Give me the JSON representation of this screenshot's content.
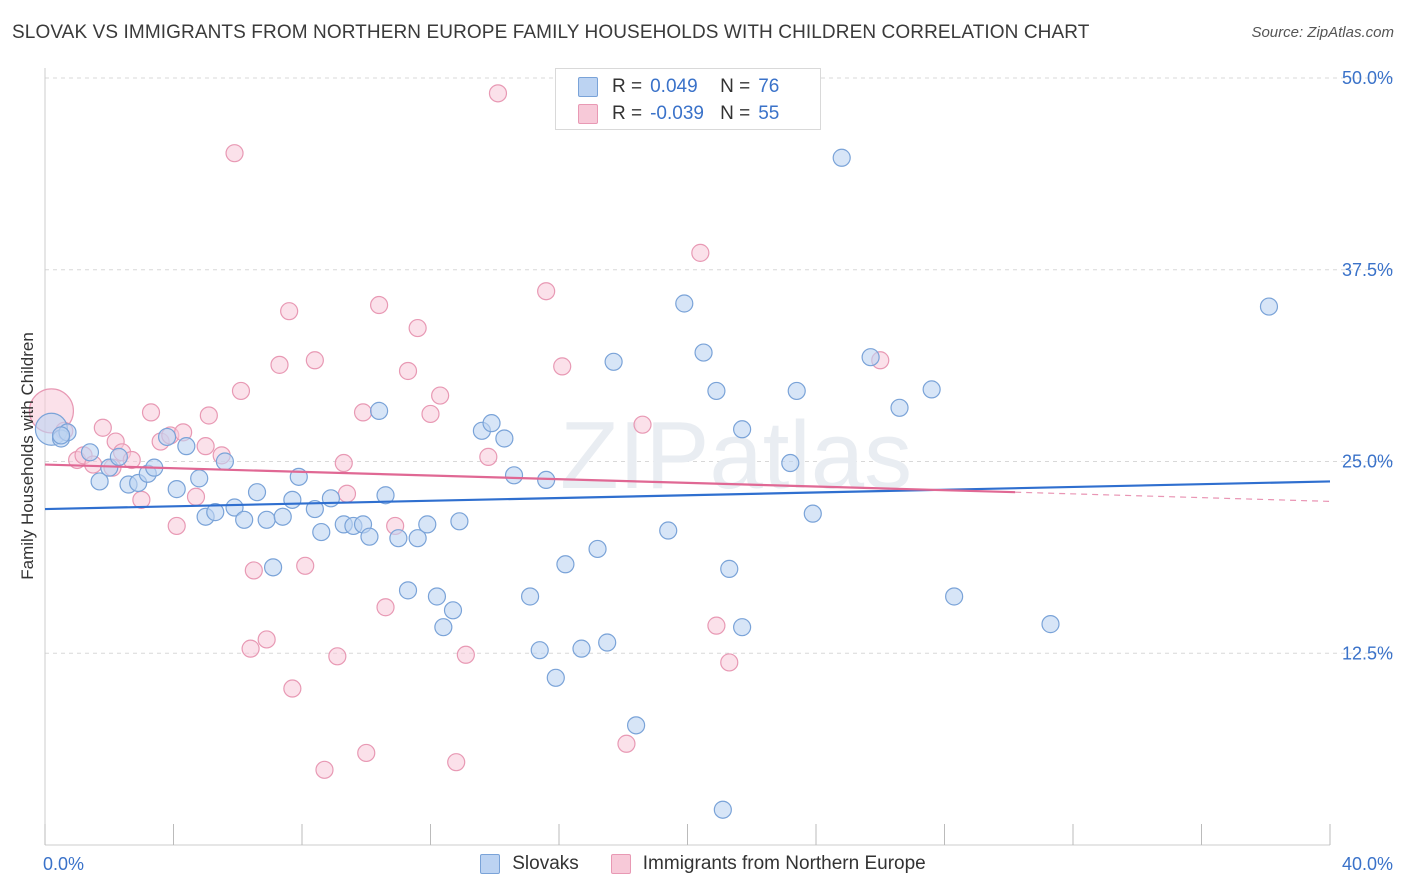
{
  "title": "SLOVAK VS IMMIGRANTS FROM NORTHERN EUROPE FAMILY HOUSEHOLDS WITH CHILDREN CORRELATION CHART",
  "source": "Source: ZipAtlas.com",
  "watermark": "ZIPatlas",
  "legend": {
    "rows": [
      {
        "r_label": "R =",
        "r_value": "0.049",
        "n_label": "N =",
        "n_value": "76"
      },
      {
        "r_label": "R =",
        "r_value": "-0.039",
        "n_label": "N =",
        "n_value": "55"
      }
    ]
  },
  "chart_data": {
    "type": "scatter",
    "title": "SLOVAK VS IMMIGRANTS FROM NORTHERN EUROPE FAMILY HOUSEHOLDS WITH CHILDREN CORRELATION CHART",
    "xlabel": "",
    "ylabel": "Family Households with Children",
    "xlim": [
      0,
      40
    ],
    "ylim": [
      0,
      50
    ],
    "x_tick_labels": [
      "0.0%",
      "40.0%"
    ],
    "y_ticks": [
      12.5,
      25.0,
      37.5,
      50.0
    ],
    "y_tick_labels": [
      "12.5%",
      "25.0%",
      "37.5%",
      "50.0%"
    ],
    "grid": true,
    "legend_position": "top-center",
    "colors": {
      "slovaks_fill": "#bcd3f2",
      "slovaks_stroke": "#7aa3d8",
      "slovaks_line": "#2f6fcf",
      "immig_fill": "#f7c9d8",
      "immig_stroke": "#e899b4",
      "immig_line": "#e06894",
      "tick_label": "#3a72c9",
      "grid": "#d8d8d8"
    },
    "series": [
      {
        "name": "Slovaks",
        "trend": {
          "x0": 0,
          "y0": 21.9,
          "x1": 40,
          "y1": 23.7
        },
        "points": [
          [
            0.2,
            27.1
          ],
          [
            0.5,
            26.5
          ],
          [
            0.7,
            26.9
          ],
          [
            1.4,
            25.6
          ],
          [
            1.7,
            23.7
          ],
          [
            2.0,
            24.6
          ],
          [
            2.3,
            25.3
          ],
          [
            2.6,
            23.5
          ],
          [
            2.9,
            23.6
          ],
          [
            3.2,
            24.2
          ],
          [
            3.4,
            24.6
          ],
          [
            3.8,
            26.6
          ],
          [
            4.1,
            23.2
          ],
          [
            4.4,
            26.0
          ],
          [
            4.8,
            23.9
          ],
          [
            5.0,
            21.4
          ],
          [
            5.3,
            21.7
          ],
          [
            5.6,
            25.0
          ],
          [
            5.9,
            22.0
          ],
          [
            6.2,
            21.2
          ],
          [
            6.6,
            23.0
          ],
          [
            6.9,
            21.2
          ],
          [
            7.1,
            18.1
          ],
          [
            7.4,
            21.4
          ],
          [
            7.7,
            22.5
          ],
          [
            7.9,
            24.0
          ],
          [
            8.4,
            21.9
          ],
          [
            8.6,
            20.4
          ],
          [
            8.9,
            22.6
          ],
          [
            9.3,
            20.9
          ],
          [
            9.6,
            20.8
          ],
          [
            9.9,
            20.9
          ],
          [
            10.1,
            20.1
          ],
          [
            10.4,
            28.3
          ],
          [
            10.6,
            22.8
          ],
          [
            11.0,
            20.0
          ],
          [
            11.3,
            16.6
          ],
          [
            11.6,
            20.0
          ],
          [
            11.9,
            20.9
          ],
          [
            12.2,
            16.2
          ],
          [
            12.4,
            14.2
          ],
          [
            12.7,
            15.3
          ],
          [
            12.9,
            21.1
          ],
          [
            13.6,
            27.0
          ],
          [
            13.9,
            27.5
          ],
          [
            14.3,
            26.5
          ],
          [
            14.6,
            24.1
          ],
          [
            15.1,
            16.2
          ],
          [
            15.4,
            12.7
          ],
          [
            15.6,
            23.8
          ],
          [
            15.9,
            10.9
          ],
          [
            16.2,
            18.3
          ],
          [
            16.7,
            12.8
          ],
          [
            17.2,
            19.3
          ],
          [
            17.5,
            13.2
          ],
          [
            17.7,
            31.5
          ],
          [
            18.4,
            7.8
          ],
          [
            19.4,
            20.5
          ],
          [
            19.9,
            35.3
          ],
          [
            20.5,
            32.1
          ],
          [
            20.9,
            29.6
          ],
          [
            21.1,
            2.3
          ],
          [
            21.3,
            18.0
          ],
          [
            21.7,
            27.1
          ],
          [
            21.7,
            14.2
          ],
          [
            23.2,
            24.9
          ],
          [
            23.4,
            29.6
          ],
          [
            23.9,
            21.6
          ],
          [
            24.8,
            44.8
          ],
          [
            25.7,
            31.8
          ],
          [
            26.6,
            28.5
          ],
          [
            27.6,
            29.7
          ],
          [
            28.3,
            16.2
          ],
          [
            31.3,
            14.4
          ],
          [
            38.1,
            35.1
          ],
          [
            0.5,
            26.7
          ]
        ]
      },
      {
        "name": "Immigrants from Northern Europe",
        "trend": {
          "x0": 0,
          "y0": 24.8,
          "x1": 30.2,
          "y1": 23.0,
          "dash_x1": 40,
          "dash_y1": 22.4
        },
        "points": [
          [
            0.2,
            28.3
          ],
          [
            0.6,
            27.0
          ],
          [
            1.0,
            25.1
          ],
          [
            1.2,
            25.4
          ],
          [
            1.5,
            24.8
          ],
          [
            1.8,
            27.2
          ],
          [
            2.1,
            24.6
          ],
          [
            2.2,
            26.3
          ],
          [
            2.4,
            25.6
          ],
          [
            2.7,
            25.1
          ],
          [
            3.0,
            22.5
          ],
          [
            3.3,
            28.2
          ],
          [
            3.6,
            26.3
          ],
          [
            3.9,
            26.7
          ],
          [
            4.1,
            20.8
          ],
          [
            4.3,
            26.9
          ],
          [
            4.7,
            22.7
          ],
          [
            5.0,
            26.0
          ],
          [
            5.1,
            28.0
          ],
          [
            5.5,
            25.4
          ],
          [
            5.9,
            45.1
          ],
          [
            6.1,
            29.6
          ],
          [
            6.4,
            12.8
          ],
          [
            6.5,
            17.9
          ],
          [
            6.9,
            13.4
          ],
          [
            7.3,
            31.3
          ],
          [
            7.6,
            34.8
          ],
          [
            7.7,
            10.2
          ],
          [
            8.1,
            18.2
          ],
          [
            8.4,
            31.6
          ],
          [
            8.7,
            4.9
          ],
          [
            9.1,
            12.3
          ],
          [
            9.3,
            24.9
          ],
          [
            9.4,
            22.9
          ],
          [
            9.9,
            28.2
          ],
          [
            10.0,
            6.0
          ],
          [
            10.4,
            35.2
          ],
          [
            10.6,
            15.5
          ],
          [
            10.9,
            20.8
          ],
          [
            11.3,
            30.9
          ],
          [
            11.6,
            33.7
          ],
          [
            12.0,
            28.1
          ],
          [
            12.3,
            29.3
          ],
          [
            12.8,
            5.4
          ],
          [
            13.1,
            12.4
          ],
          [
            13.8,
            25.3
          ],
          [
            14.1,
            49.0
          ],
          [
            15.6,
            36.1
          ],
          [
            16.1,
            31.2
          ],
          [
            18.1,
            6.6
          ],
          [
            18.6,
            27.4
          ],
          [
            20.4,
            38.6
          ],
          [
            20.9,
            14.3
          ],
          [
            21.3,
            11.9
          ],
          [
            26.0,
            31.6
          ]
        ]
      }
    ]
  }
}
